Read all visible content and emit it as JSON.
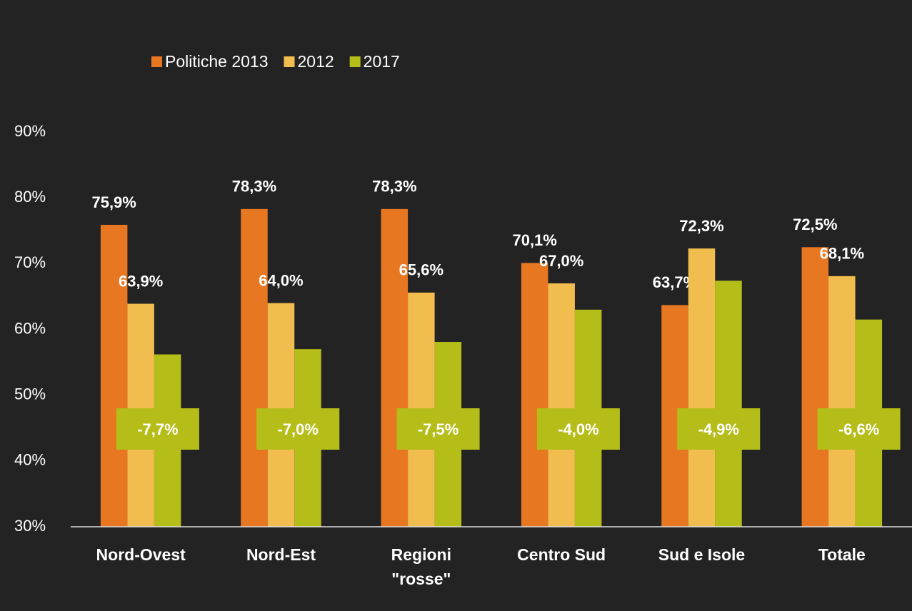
{
  "chart_data": {
    "type": "bar",
    "categories": [
      "Nord-Ovest",
      "Nord-Est",
      "Regioni\n\"rosse\"",
      "Centro Sud",
      "Sud e Isole",
      "Totale"
    ],
    "series": [
      {
        "name": "Politiche 2013",
        "color": "#e87722",
        "values": [
          75.9,
          78.3,
          78.3,
          70.1,
          63.7,
          72.5
        ],
        "value_labels": [
          "75,9%",
          "78,3%",
          "78,3%",
          "70,1%",
          "63,7%",
          "72,5%"
        ]
      },
      {
        "name": "2012",
        "color": "#f2bd4f",
        "values": [
          63.9,
          64.0,
          65.6,
          67.0,
          72.3,
          68.1
        ],
        "value_labels": [
          "63,9%",
          "64,0%",
          "65,6%",
          "67,0%",
          "72,3%",
          "68,1%"
        ]
      },
      {
        "name": "2017",
        "color": "#b5bd18",
        "values": [
          56.2,
          57.0,
          58.1,
          63.0,
          67.4,
          61.5
        ]
      }
    ],
    "differences": [
      "-7,7%",
      "-7,0%",
      "-7,5%",
      "-4,0%",
      "-4,9%",
      "-6,6%"
    ],
    "ylim": [
      30,
      90
    ],
    "yticks": [
      {
        "value": 30,
        "label": "30%"
      },
      {
        "value": 40,
        "label": "40%"
      },
      {
        "value": 50,
        "label": "50%"
      },
      {
        "value": 60,
        "label": "60%"
      },
      {
        "value": 70,
        "label": "70%"
      },
      {
        "value": 80,
        "label": "80%"
      },
      {
        "value": 90,
        "label": "90%"
      }
    ],
    "grid": false,
    "legend": "top"
  }
}
